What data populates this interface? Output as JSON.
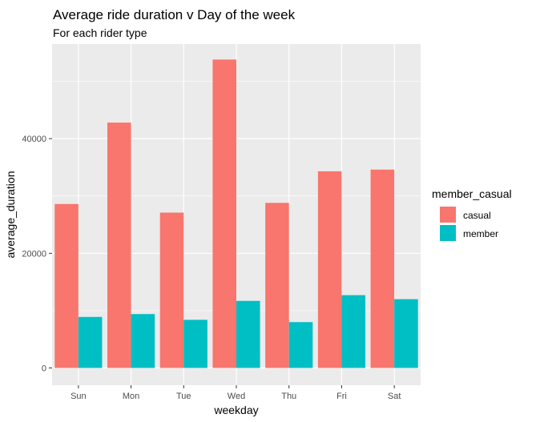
{
  "chart_data": {
    "type": "bar",
    "title": "Average ride duration v Day of the week",
    "subtitle": "For each rider type",
    "xlabel": "weekday",
    "ylabel": "average_duration",
    "categories": [
      "Sun",
      "Mon",
      "Tue",
      "Wed",
      "Thu",
      "Fri",
      "Sat"
    ],
    "series": [
      {
        "name": "casual",
        "color": "#F8766D",
        "values": [
          28600,
          42800,
          27100,
          53800,
          28800,
          34300,
          34600
        ]
      },
      {
        "name": "member",
        "color": "#00BFC4",
        "values": [
          8900,
          9400,
          8400,
          11700,
          8000,
          12700,
          12000
        ]
      }
    ],
    "ylim": [
      -3000,
      56500
    ],
    "yticks": [
      0,
      20000,
      40000
    ],
    "ytick_labels": [
      "0",
      "20000",
      "40000"
    ],
    "grid": true,
    "legend": {
      "title": "member_casual",
      "position": "right"
    },
    "panel_background": "#EBEBEB"
  }
}
